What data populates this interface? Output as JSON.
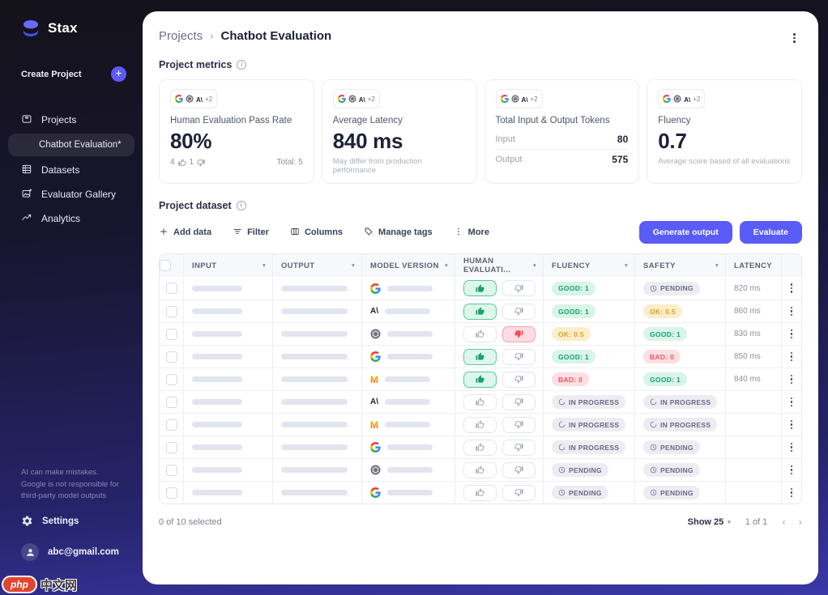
{
  "app": {
    "name": "Stax"
  },
  "colors": {
    "accent": "#5b5bf7",
    "good_bg": "#d9f4e8",
    "good_text": "#0fa173",
    "ok_bg": "#fdeec9",
    "ok_text": "#dd9e27",
    "bad_bg": "#fbdfe2",
    "bad_text": "#ef5660",
    "neutral_bg": "#ececf2",
    "neutral_text": "#666b82"
  },
  "sidebar": {
    "create_project": "Create Project",
    "nav": [
      {
        "label": "Projects",
        "icon": "projects-icon",
        "active": false,
        "child": false
      },
      {
        "label": "Chatbot Evaluation*",
        "icon": "",
        "active": true,
        "child": true
      },
      {
        "label": "Datasets",
        "icon": "datasets-icon",
        "active": false,
        "child": false
      },
      {
        "label": "Evaluator Gallery",
        "icon": "gallery-icon",
        "active": false,
        "child": false
      },
      {
        "label": "Analytics",
        "icon": "analytics-icon",
        "active": false,
        "child": false
      }
    ],
    "disclaimer": "AI can make mistakes. Google is not responsible for third-party model outputs",
    "settings_label": "Settings",
    "account_email": "abc@gmail.com",
    "collapse_icon": "‹"
  },
  "header": {
    "breadcrumb": {
      "parent": "Projects",
      "separator": "›",
      "current": "Chatbot Evaluation"
    }
  },
  "metrics": {
    "section_title": "Project metrics",
    "providers": {
      "icons": [
        "google-icon",
        "openai-icon",
        "anthropic-icon"
      ],
      "more": "+2"
    },
    "cards": [
      {
        "title": "Human Evaluation Pass Rate",
        "value": "80%",
        "thumbs_up_count": "4",
        "thumbs_down_count": "1",
        "total_label": "Total: 5"
      },
      {
        "title": "Average Latency",
        "value": "840 ms",
        "note": "May differ from production performance"
      },
      {
        "title": "Total Input & Output Tokens",
        "rows": [
          {
            "label": "Input",
            "value": "80"
          },
          {
            "label": "Output",
            "value": "575"
          }
        ]
      },
      {
        "title": "Fluency",
        "value": "0.7",
        "note": "Average score based of all evaluations"
      }
    ]
  },
  "dataset": {
    "section_title": "Project dataset",
    "toolbar": [
      {
        "label": "Add data",
        "icon": "plus-icon"
      },
      {
        "label": "Filter",
        "icon": "filter-icon"
      },
      {
        "label": "Columns",
        "icon": "columns-icon"
      },
      {
        "label": "Manage tags",
        "icon": "tag-icon"
      },
      {
        "label": "More",
        "icon": "kebab-icon"
      }
    ],
    "generate_button": "Generate output",
    "evaluate_button": "Evaluate",
    "table": {
      "columns": [
        {
          "label": "INPUT",
          "sortable": true
        },
        {
          "label": "OUTPUT",
          "sortable": true
        },
        {
          "label": "MODEL VERSION",
          "sortable": true
        },
        {
          "label": "HUMAN EVALUATI...",
          "sortable": true
        },
        {
          "label": "FLUENCY",
          "sortable": true
        },
        {
          "label": "SAFETY",
          "sortable": true
        },
        {
          "label": "LATENCY",
          "sortable": false
        }
      ],
      "rows": [
        {
          "model": "google",
          "human": "up",
          "fluency": {
            "label": "GOOD: 1",
            "status": "good"
          },
          "safety": {
            "label": "PENDING",
            "status": "pending"
          },
          "latency": "820 ms"
        },
        {
          "model": "anthropic",
          "human": "up",
          "fluency": {
            "label": "GOOD: 1",
            "status": "good"
          },
          "safety": {
            "label": "OK: 0.5",
            "status": "ok"
          },
          "latency": "860 ms"
        },
        {
          "model": "openai",
          "human": "down",
          "fluency": {
            "label": "OK: 0.5",
            "status": "ok"
          },
          "safety": {
            "label": "GOOD: 1",
            "status": "good"
          },
          "latency": "830 ms"
        },
        {
          "model": "google",
          "human": "up",
          "fluency": {
            "label": "GOOD: 1",
            "status": "good"
          },
          "safety": {
            "label": "BAD: 0",
            "status": "bad"
          },
          "latency": "850 ms"
        },
        {
          "model": "mistral",
          "human": "up",
          "fluency": {
            "label": "BAD: 0",
            "status": "bad"
          },
          "safety": {
            "label": "GOOD: 1",
            "status": "good"
          },
          "latency": "840 ms"
        },
        {
          "model": "anthropic",
          "human": "none",
          "fluency": {
            "label": "IN PROGRESS",
            "status": "in_progress"
          },
          "safety": {
            "label": "IN PROGRESS",
            "status": "in_progress"
          },
          "latency": ""
        },
        {
          "model": "mistral",
          "human": "none",
          "fluency": {
            "label": "IN PROGRESS",
            "status": "in_progress"
          },
          "safety": {
            "label": "IN PROGRESS",
            "status": "in_progress"
          },
          "latency": ""
        },
        {
          "model": "google",
          "human": "none",
          "fluency": {
            "label": "IN PROGRESS",
            "status": "in_progress"
          },
          "safety": {
            "label": "PENDING",
            "status": "pending"
          },
          "latency": ""
        },
        {
          "model": "openai",
          "human": "none",
          "fluency": {
            "label": "PENDING",
            "status": "pending"
          },
          "safety": {
            "label": "PENDING",
            "status": "pending"
          },
          "latency": ""
        },
        {
          "model": "google",
          "human": "none",
          "fluency": {
            "label": "PENDING",
            "status": "pending"
          },
          "safety": {
            "label": "PENDING",
            "status": "pending"
          },
          "latency": ""
        }
      ]
    },
    "footer": {
      "selected_text": "0 of 10 selected",
      "page_size_label": "Show 25",
      "page_indicator": "1 of 1"
    }
  },
  "watermark": {
    "badge_text": "php",
    "site_text": "中文网"
  }
}
